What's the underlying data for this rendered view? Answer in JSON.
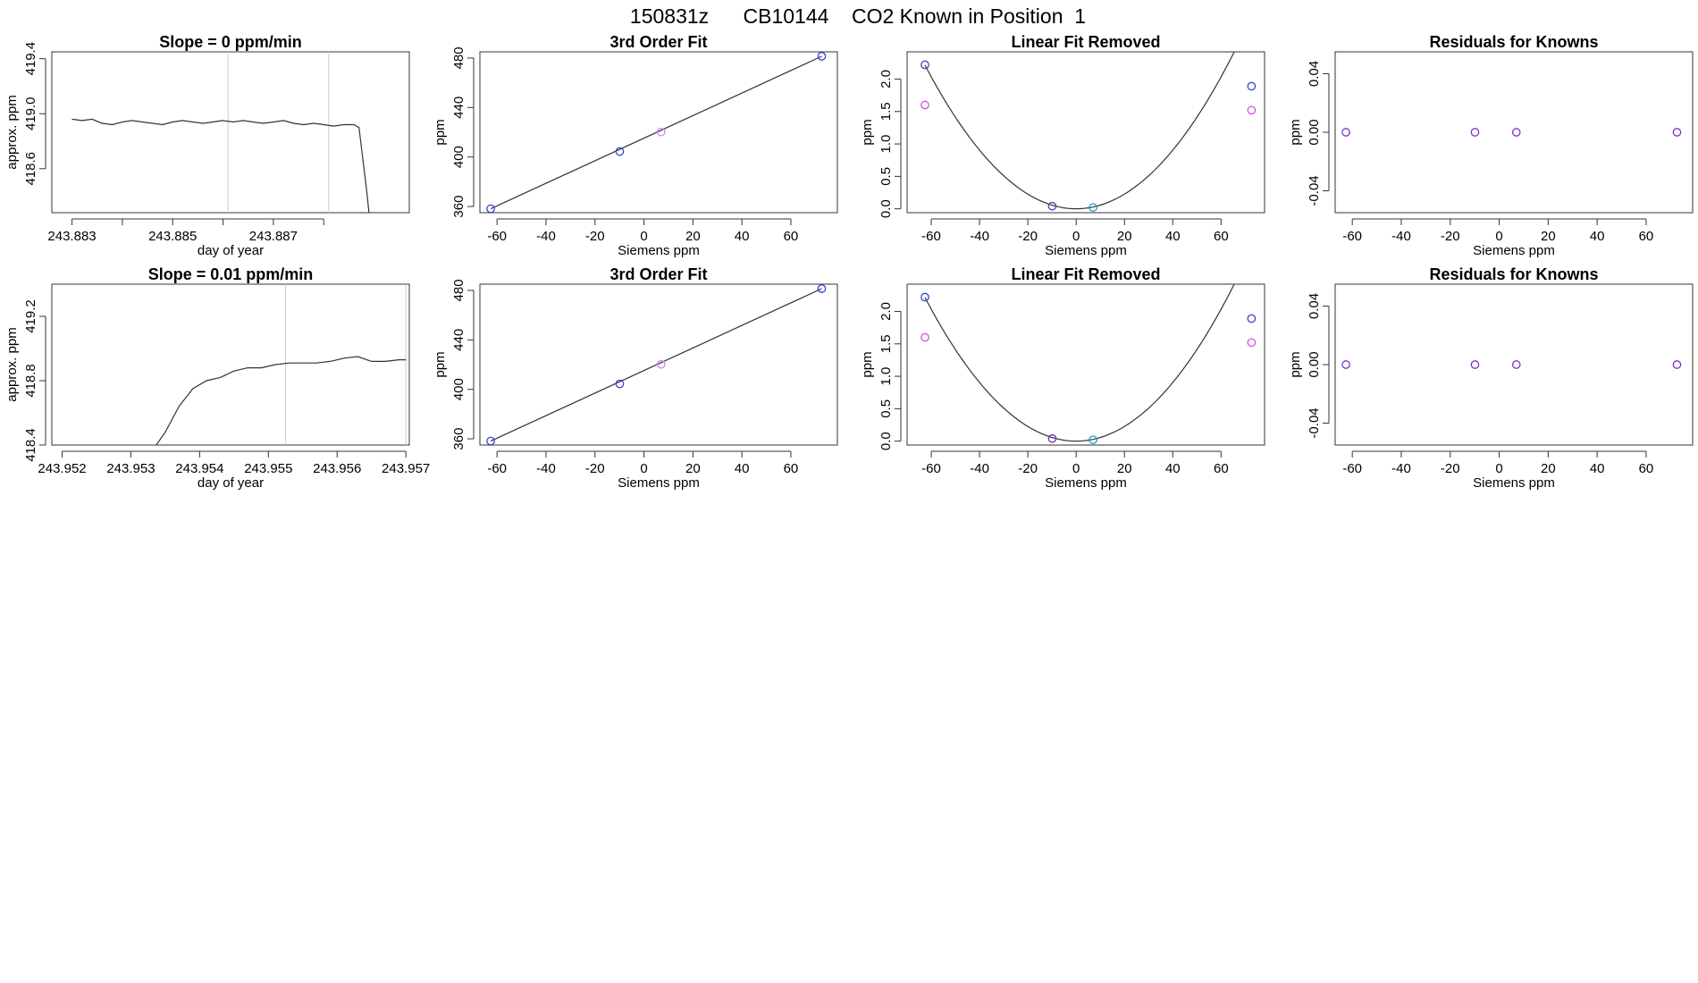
{
  "figure": {
    "title": "150831z      CB10144    CO2 Known in Position  1"
  },
  "chart_data": [
    {
      "type": "line",
      "title": "Slope =  0  ppm/min",
      "xlabel": "day of year",
      "ylabel": "approx. ppm",
      "xlim": [
        243.8826,
        243.8897
      ],
      "ylim": [
        418.28,
        419.45
      ],
      "xticks": [
        243.883,
        243.884,
        243.885,
        243.886,
        243.887,
        243.888
      ],
      "xtick_labels": [
        "243.883",
        "",
        "243.885",
        "",
        "243.887",
        ""
      ],
      "yticks": [
        418.6,
        419.0,
        419.4
      ],
      "ytick_labels": [
        "418.6",
        "419.0",
        "419.4"
      ],
      "vlines": [
        243.8861,
        243.8881
      ],
      "line_color": "#333333",
      "vline_color": "#cccccc",
      "series": [
        {
          "x": [
            243.883,
            243.8832,
            243.8834,
            243.8836,
            243.8838,
            243.884,
            243.8842,
            243.8844,
            243.8846,
            243.8848,
            243.885,
            243.8852,
            243.8854,
            243.8856,
            243.8858,
            243.886,
            243.8862,
            243.8864,
            243.8866,
            243.8868,
            243.887,
            243.8872,
            243.8874,
            243.8876,
            243.8878,
            243.888,
            243.8882,
            243.8884,
            243.8886,
            243.8887,
            243.8888,
            243.88885,
            243.8889
          ],
          "y": [
            418.96,
            418.95,
            418.96,
            418.93,
            418.92,
            418.94,
            418.95,
            418.94,
            418.93,
            418.92,
            418.94,
            418.95,
            418.94,
            418.93,
            418.94,
            418.95,
            418.94,
            418.95,
            418.94,
            418.93,
            418.94,
            418.95,
            418.93,
            418.92,
            418.93,
            418.92,
            418.91,
            418.92,
            418.92,
            418.9,
            418.6,
            418.45,
            418.28
          ]
        }
      ]
    },
    {
      "type": "line",
      "title": "3rd Order Fit",
      "xlabel": "Siemens ppm",
      "ylabel": "ppm",
      "xlim": [
        -67,
        79
      ],
      "ylim": [
        355,
        485
      ],
      "xticks": [
        -60,
        -40,
        -20,
        0,
        20,
        40,
        60
      ],
      "yticks": [
        360,
        400,
        440,
        480
      ],
      "series": [
        {
          "x": [
            -62.6,
            72.6
          ],
          "y": [
            358.2,
            481.4
          ],
          "color": "#333333"
        }
      ],
      "points": [
        {
          "x": -62.6,
          "y": 358.2,
          "color": "#3344cc"
        },
        {
          "x": -9.9,
          "y": 404.4,
          "color": "#3344cc"
        },
        {
          "x": 7.0,
          "y": 420.2,
          "color": "#cc88ee"
        },
        {
          "x": 72.6,
          "y": 481.4,
          "color": "#3344cc"
        }
      ]
    },
    {
      "type": "line",
      "title": "Linear Fit Removed",
      "xlabel": "Siemens ppm",
      "ylabel": "ppm",
      "xlim": [
        -70,
        78
      ],
      "ylim": [
        -0.06,
        2.42
      ],
      "xticks": [
        -60,
        -40,
        -20,
        0,
        20,
        40,
        60
      ],
      "yticks": [
        0.0,
        0.5,
        1.0,
        1.5,
        2.0
      ],
      "ytick_labels": [
        "0.0",
        "0.5",
        "1.0",
        "1.5",
        "2.0"
      ],
      "fit_curve": {
        "coefficients": [
          0.0,
          0.0,
          0.000565
        ],
        "color": "#333333",
        "xmin": -62.6,
        "xmax": 72.6
      },
      "points": [
        {
          "x": -62.6,
          "y": 2.22,
          "color": "#3344cc"
        },
        {
          "x": -62.6,
          "y": 1.6,
          "color": "#cc55dd"
        },
        {
          "x": -9.9,
          "y": 0.04,
          "color": "#6633aa"
        },
        {
          "x": 7.0,
          "y": 0.02,
          "color": "#2299bb"
        },
        {
          "x": 72.6,
          "y": 1.89,
          "color": "#3344cc"
        },
        {
          "x": 72.6,
          "y": 1.52,
          "color": "#cc55dd"
        }
      ]
    },
    {
      "type": "scatter",
      "title": "Residuals for Knowns",
      "xlabel": "Siemens ppm",
      "ylabel": "ppm",
      "xlim": [
        -67,
        79
      ],
      "ylim": [
        -0.055,
        0.055
      ],
      "xticks": [
        -60,
        -40,
        -20,
        0,
        20,
        40,
        60
      ],
      "yticks": [
        -0.04,
        0.0,
        0.04
      ],
      "ytick_labels": [
        "-0.04",
        "0.00",
        "0.04"
      ],
      "points": [
        {
          "x": -62.6,
          "y": 0.0,
          "color": "#7733cc"
        },
        {
          "x": -9.9,
          "y": 0.0,
          "color": "#7733cc"
        },
        {
          "x": 7.0,
          "y": 0.0,
          "color": "#7733cc"
        },
        {
          "x": 72.6,
          "y": 0.0,
          "color": "#7733cc"
        }
      ]
    },
    {
      "type": "line",
      "title": "Slope =  0.01  ppm/min",
      "xlabel": "day of year",
      "ylabel": "approx. ppm",
      "xlim": [
        243.95185,
        243.95705
      ],
      "ylim": [
        418.4,
        419.4
      ],
      "xticks": [
        243.952,
        243.953,
        243.954,
        243.955,
        243.956,
        243.957
      ],
      "xtick_labels": [
        "243.952",
        "243.953",
        "243.954",
        "243.955",
        "243.956",
        "243.957"
      ],
      "yticks": [
        418.4,
        418.8,
        419.2
      ],
      "ytick_labels": [
        "418.4",
        "418.8",
        "419.2"
      ],
      "vlines": [
        243.95525,
        243.957
      ],
      "line_color": "#333333",
      "vline_color": "#cccccc",
      "series": [
        {
          "x": [
            243.95337,
            243.9535,
            243.9537,
            243.9539,
            243.9541,
            243.9543,
            243.9545,
            243.9547,
            243.9549,
            243.9551,
            243.9553,
            243.9555,
            243.9557,
            243.9559,
            243.9561,
            243.9563,
            243.9565,
            243.9567,
            243.9569,
            243.957
          ],
          "y": [
            418.4,
            418.48,
            418.64,
            418.75,
            418.8,
            418.82,
            418.86,
            418.88,
            418.88,
            418.9,
            418.91,
            418.91,
            418.91,
            418.92,
            418.94,
            418.95,
            418.92,
            418.92,
            418.93,
            418.93
          ]
        }
      ]
    },
    {
      "type": "line",
      "title": "3rd Order Fit",
      "xlabel": "Siemens ppm",
      "ylabel": "ppm",
      "xlim": [
        -67,
        79
      ],
      "ylim": [
        355,
        485
      ],
      "xticks": [
        -60,
        -40,
        -20,
        0,
        20,
        40,
        60
      ],
      "yticks": [
        360,
        400,
        440,
        480
      ],
      "series": [
        {
          "x": [
            -62.6,
            72.6
          ],
          "y": [
            358.2,
            481.4
          ],
          "color": "#333333"
        }
      ],
      "points": [
        {
          "x": -62.6,
          "y": 358.2,
          "color": "#3344cc"
        },
        {
          "x": -9.9,
          "y": 404.4,
          "color": "#3344cc"
        },
        {
          "x": 7.0,
          "y": 420.2,
          "color": "#cc88ee"
        },
        {
          "x": 72.6,
          "y": 481.4,
          "color": "#3344cc"
        }
      ]
    },
    {
      "type": "line",
      "title": "Linear Fit Removed",
      "xlabel": "Siemens ppm",
      "ylabel": "ppm",
      "xlim": [
        -70,
        78
      ],
      "ylim": [
        -0.06,
        2.42
      ],
      "xticks": [
        -60,
        -40,
        -20,
        0,
        20,
        40,
        60
      ],
      "yticks": [
        0.0,
        0.5,
        1.0,
        1.5,
        2.0
      ],
      "ytick_labels": [
        "0.0",
        "0.5",
        "1.0",
        "1.5",
        "2.0"
      ],
      "fit_curve": {
        "coefficients": [
          0.0,
          0.0,
          0.000565
        ],
        "color": "#333333",
        "xmin": -62.6,
        "xmax": 72.6
      },
      "points": [
        {
          "x": -62.6,
          "y": 2.22,
          "color": "#3344cc"
        },
        {
          "x": -62.6,
          "y": 1.6,
          "color": "#cc55dd"
        },
        {
          "x": -9.9,
          "y": 0.04,
          "color": "#6633aa"
        },
        {
          "x": 7.0,
          "y": 0.02,
          "color": "#2299bb"
        },
        {
          "x": 72.6,
          "y": 1.89,
          "color": "#3344cc"
        },
        {
          "x": 72.6,
          "y": 1.52,
          "color": "#cc55dd"
        }
      ]
    },
    {
      "type": "scatter",
      "title": "Residuals for Knowns",
      "xlabel": "Siemens ppm",
      "ylabel": "ppm",
      "xlim": [
        -67,
        79
      ],
      "ylim": [
        -0.055,
        0.055
      ],
      "xticks": [
        -60,
        -40,
        -20,
        0,
        20,
        40,
        60
      ],
      "yticks": [
        -0.04,
        0.0,
        0.04
      ],
      "ytick_labels": [
        "-0.04",
        "0.00",
        "0.04"
      ],
      "points": [
        {
          "x": -62.6,
          "y": 0.0,
          "color": "#7733cc"
        },
        {
          "x": -9.9,
          "y": 0.0,
          "color": "#7733cc"
        },
        {
          "x": 7.0,
          "y": 0.0,
          "color": "#7733cc"
        },
        {
          "x": 72.6,
          "y": 0.0,
          "color": "#7733cc"
        }
      ]
    }
  ]
}
